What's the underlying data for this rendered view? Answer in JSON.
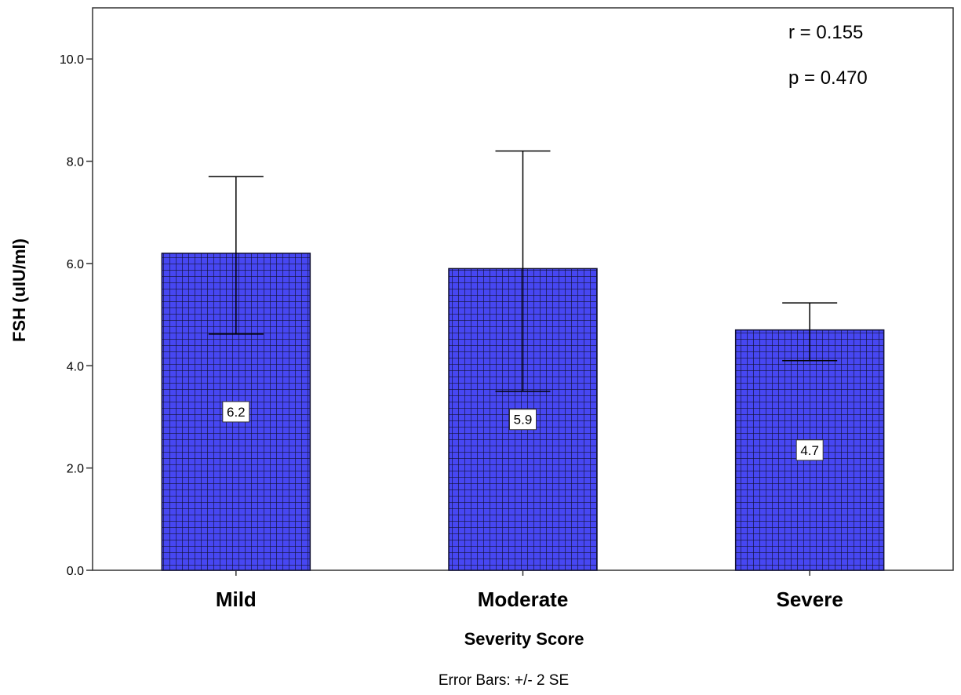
{
  "chart_data": {
    "type": "bar",
    "categories": [
      "Mild",
      "Moderate",
      "Severe"
    ],
    "values": [
      6.2,
      5.9,
      4.7
    ],
    "data_labels": [
      "6.2",
      "5.9",
      "4.7"
    ],
    "error_bars": {
      "label": "Error Bars: +/- 2 SE",
      "lower": [
        4.62,
        3.5,
        4.1
      ],
      "upper": [
        7.7,
        8.2,
        5.23
      ]
    },
    "xlabel": "Severity Score",
    "ylabel": "FSH (uIU/ml)",
    "ylim": [
      0,
      11
    ],
    "yticks": [
      0,
      2,
      4,
      6,
      8,
      10
    ],
    "ytick_labels": [
      "0.0",
      "2.0",
      "4.0",
      "6.0",
      "8.0",
      "10.0"
    ],
    "annotations": [
      "r = 0.155",
      "p = 0.470"
    ],
    "bar_color": "#4747f2",
    "hatch_color": "#111133",
    "grid": false
  }
}
